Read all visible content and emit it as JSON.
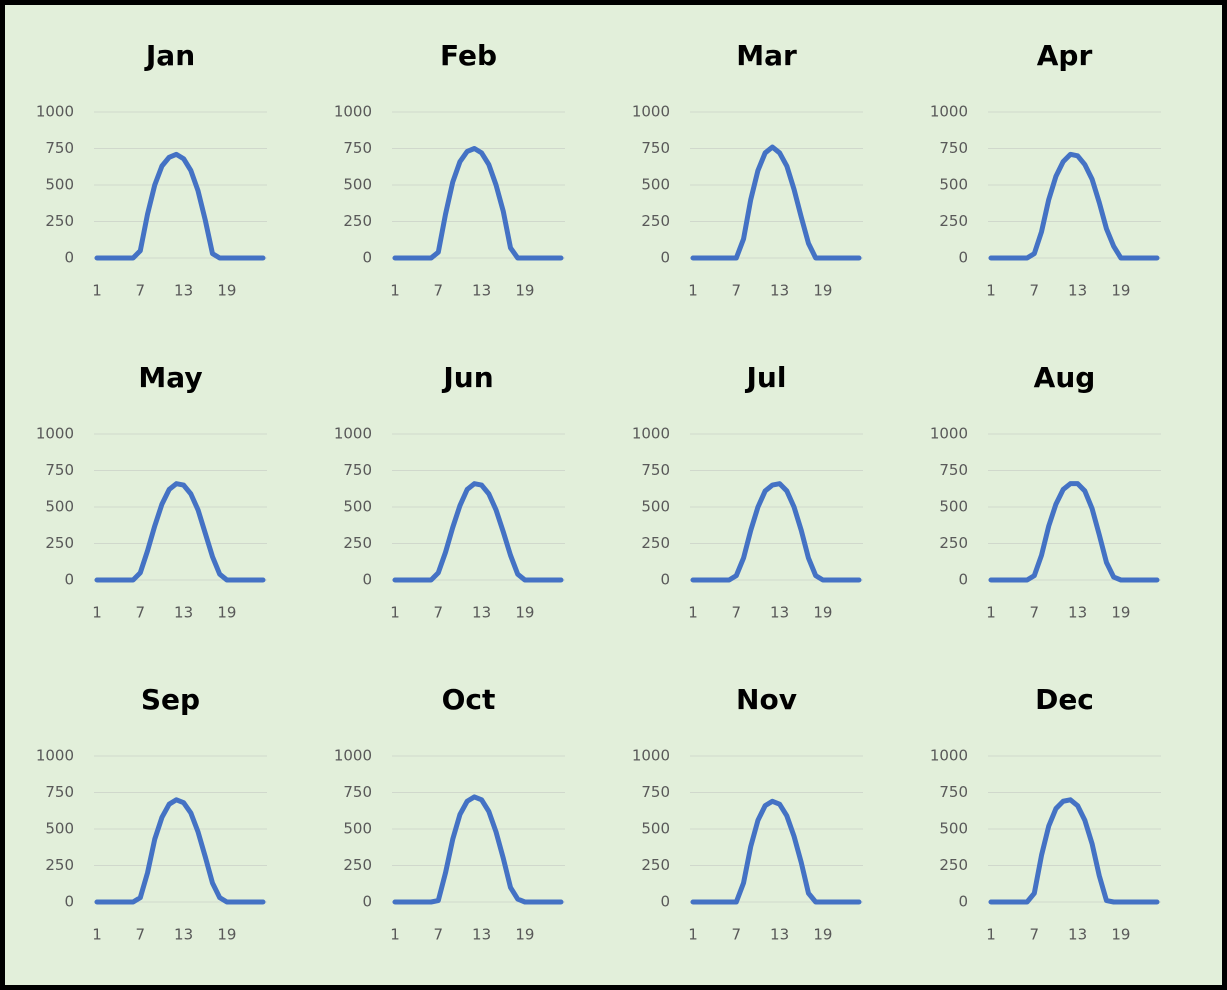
{
  "chart_data": [
    {
      "type": "line",
      "title": "Jan",
      "x": [
        1,
        2,
        3,
        4,
        5,
        6,
        7,
        8,
        9,
        10,
        11,
        12,
        13,
        14,
        15,
        16,
        17,
        18,
        19,
        20,
        21,
        22,
        23,
        24
      ],
      "values": [
        0,
        0,
        0,
        0,
        0,
        0,
        50,
        300,
        500,
        630,
        690,
        710,
        680,
        600,
        460,
        260,
        30,
        0,
        0,
        0,
        0,
        0,
        0,
        0
      ],
      "color": "#4472c4",
      "xlim": [
        1,
        24
      ],
      "xticks": [
        1,
        7,
        13,
        19
      ],
      "ylim": [
        0,
        1000
      ],
      "yticks": [
        0,
        250,
        500,
        750,
        1000
      ],
      "grid": true
    },
    {
      "type": "line",
      "title": "Feb",
      "x": [
        1,
        2,
        3,
        4,
        5,
        6,
        7,
        8,
        9,
        10,
        11,
        12,
        13,
        14,
        15,
        16,
        17,
        18,
        19,
        20,
        21,
        22,
        23,
        24
      ],
      "values": [
        0,
        0,
        0,
        0,
        0,
        0,
        40,
        300,
        520,
        660,
        730,
        750,
        720,
        640,
        500,
        320,
        70,
        0,
        0,
        0,
        0,
        0,
        0,
        0
      ],
      "color": "#4472c4",
      "xlim": [
        1,
        24
      ],
      "xticks": [
        1,
        7,
        13,
        19
      ],
      "ylim": [
        0,
        1000
      ],
      "yticks": [
        0,
        250,
        500,
        750,
        1000
      ],
      "grid": true
    },
    {
      "type": "line",
      "title": "Mar",
      "x": [
        1,
        2,
        3,
        4,
        5,
        6,
        7,
        8,
        9,
        10,
        11,
        12,
        13,
        14,
        15,
        16,
        17,
        18,
        19,
        20,
        21,
        22,
        23,
        24
      ],
      "values": [
        0,
        0,
        0,
        0,
        0,
        0,
        0,
        130,
        400,
        600,
        720,
        760,
        720,
        630,
        470,
        280,
        100,
        0,
        0,
        0,
        0,
        0,
        0,
        0
      ],
      "color": "#4472c4",
      "xlim": [
        1,
        24
      ],
      "xticks": [
        1,
        7,
        13,
        19
      ],
      "ylim": [
        0,
        1000
      ],
      "yticks": [
        0,
        250,
        500,
        750,
        1000
      ],
      "grid": true
    },
    {
      "type": "line",
      "title": "Apr",
      "x": [
        1,
        2,
        3,
        4,
        5,
        6,
        7,
        8,
        9,
        10,
        11,
        12,
        13,
        14,
        15,
        16,
        17,
        18,
        19,
        20,
        21,
        22,
        23,
        24
      ],
      "values": [
        0,
        0,
        0,
        0,
        0,
        0,
        30,
        180,
        400,
        560,
        660,
        710,
        700,
        640,
        540,
        380,
        200,
        80,
        0,
        0,
        0,
        0,
        0,
        0
      ],
      "color": "#4472c4",
      "xlim": [
        1,
        24
      ],
      "xticks": [
        1,
        7,
        13,
        19
      ],
      "ylim": [
        0,
        1000
      ],
      "yticks": [
        0,
        250,
        500,
        750,
        1000
      ],
      "grid": true
    },
    {
      "type": "line",
      "title": "May",
      "x": [
        1,
        2,
        3,
        4,
        5,
        6,
        7,
        8,
        9,
        10,
        11,
        12,
        13,
        14,
        15,
        16,
        17,
        18,
        19,
        20,
        21,
        22,
        23,
        24
      ],
      "values": [
        0,
        0,
        0,
        0,
        0,
        0,
        50,
        200,
        370,
        520,
        620,
        660,
        650,
        590,
        480,
        320,
        160,
        40,
        0,
        0,
        0,
        0,
        0,
        0
      ],
      "color": "#4472c4",
      "xlim": [
        1,
        24
      ],
      "xticks": [
        1,
        7,
        13,
        19
      ],
      "ylim": [
        0,
        1000
      ],
      "yticks": [
        0,
        250,
        500,
        750,
        1000
      ],
      "grid": true
    },
    {
      "type": "line",
      "title": "Jun",
      "x": [
        1,
        2,
        3,
        4,
        5,
        6,
        7,
        8,
        9,
        10,
        11,
        12,
        13,
        14,
        15,
        16,
        17,
        18,
        19,
        20,
        21,
        22,
        23,
        24
      ],
      "values": [
        0,
        0,
        0,
        0,
        0,
        0,
        50,
        190,
        360,
        510,
        620,
        660,
        650,
        590,
        480,
        330,
        170,
        40,
        0,
        0,
        0,
        0,
        0,
        0
      ],
      "color": "#4472c4",
      "xlim": [
        1,
        24
      ],
      "xticks": [
        1,
        7,
        13,
        19
      ],
      "ylim": [
        0,
        1000
      ],
      "yticks": [
        0,
        250,
        500,
        750,
        1000
      ],
      "grid": true
    },
    {
      "type": "line",
      "title": "Jul",
      "x": [
        1,
        2,
        3,
        4,
        5,
        6,
        7,
        8,
        9,
        10,
        11,
        12,
        13,
        14,
        15,
        16,
        17,
        18,
        19,
        20,
        21,
        22,
        23,
        24
      ],
      "values": [
        0,
        0,
        0,
        0,
        0,
        0,
        30,
        150,
        340,
        500,
        610,
        650,
        660,
        610,
        500,
        340,
        150,
        30,
        0,
        0,
        0,
        0,
        0,
        0
      ],
      "color": "#4472c4",
      "xlim": [
        1,
        24
      ],
      "xticks": [
        1,
        7,
        13,
        19
      ],
      "ylim": [
        0,
        1000
      ],
      "yticks": [
        0,
        250,
        500,
        750,
        1000
      ],
      "grid": true
    },
    {
      "type": "line",
      "title": "Aug",
      "x": [
        1,
        2,
        3,
        4,
        5,
        6,
        7,
        8,
        9,
        10,
        11,
        12,
        13,
        14,
        15,
        16,
        17,
        18,
        19,
        20,
        21,
        22,
        23,
        24
      ],
      "values": [
        0,
        0,
        0,
        0,
        0,
        0,
        30,
        170,
        370,
        520,
        620,
        660,
        660,
        610,
        490,
        310,
        120,
        20,
        0,
        0,
        0,
        0,
        0,
        0
      ],
      "color": "#4472c4",
      "xlim": [
        1,
        24
      ],
      "xticks": [
        1,
        7,
        13,
        19
      ],
      "ylim": [
        0,
        1000
      ],
      "yticks": [
        0,
        250,
        500,
        750,
        1000
      ],
      "grid": true
    },
    {
      "type": "line",
      "title": "Sep",
      "x": [
        1,
        2,
        3,
        4,
        5,
        6,
        7,
        8,
        9,
        10,
        11,
        12,
        13,
        14,
        15,
        16,
        17,
        18,
        19,
        20,
        21,
        22,
        23,
        24
      ],
      "values": [
        0,
        0,
        0,
        0,
        0,
        0,
        30,
        200,
        430,
        580,
        670,
        700,
        680,
        610,
        480,
        310,
        130,
        30,
        0,
        0,
        0,
        0,
        0,
        0
      ],
      "color": "#4472c4",
      "xlim": [
        1,
        24
      ],
      "xticks": [
        1,
        7,
        13,
        19
      ],
      "ylim": [
        0,
        1000
      ],
      "yticks": [
        0,
        250,
        500,
        750,
        1000
      ],
      "grid": true
    },
    {
      "type": "line",
      "title": "Oct",
      "x": [
        1,
        2,
        3,
        4,
        5,
        6,
        7,
        8,
        9,
        10,
        11,
        12,
        13,
        14,
        15,
        16,
        17,
        18,
        19,
        20,
        21,
        22,
        23,
        24
      ],
      "values": [
        0,
        0,
        0,
        0,
        0,
        0,
        10,
        200,
        430,
        600,
        690,
        720,
        700,
        620,
        480,
        300,
        100,
        20,
        0,
        0,
        0,
        0,
        0,
        0
      ],
      "color": "#4472c4",
      "xlim": [
        1,
        24
      ],
      "xticks": [
        1,
        7,
        13,
        19
      ],
      "ylim": [
        0,
        1000
      ],
      "yticks": [
        0,
        250,
        500,
        750,
        1000
      ],
      "grid": true
    },
    {
      "type": "line",
      "title": "Nov",
      "x": [
        1,
        2,
        3,
        4,
        5,
        6,
        7,
        8,
        9,
        10,
        11,
        12,
        13,
        14,
        15,
        16,
        17,
        18,
        19,
        20,
        21,
        22,
        23,
        24
      ],
      "values": [
        0,
        0,
        0,
        0,
        0,
        0,
        0,
        130,
        380,
        560,
        660,
        690,
        670,
        590,
        450,
        270,
        60,
        0,
        0,
        0,
        0,
        0,
        0,
        0
      ],
      "color": "#4472c4",
      "xlim": [
        1,
        24
      ],
      "xticks": [
        1,
        7,
        13,
        19
      ],
      "ylim": [
        0,
        1000
      ],
      "yticks": [
        0,
        250,
        500,
        750,
        1000
      ],
      "grid": true
    },
    {
      "type": "line",
      "title": "Dec",
      "x": [
        1,
        2,
        3,
        4,
        5,
        6,
        7,
        8,
        9,
        10,
        11,
        12,
        13,
        14,
        15,
        16,
        17,
        18,
        19,
        20,
        21,
        22,
        23,
        24
      ],
      "values": [
        0,
        0,
        0,
        0,
        0,
        0,
        60,
        320,
        520,
        640,
        690,
        700,
        660,
        560,
        400,
        180,
        10,
        0,
        0,
        0,
        0,
        0,
        0,
        0
      ],
      "color": "#4472c4",
      "xlim": [
        1,
        24
      ],
      "xticks": [
        1,
        7,
        13,
        19
      ],
      "ylim": [
        0,
        1000
      ],
      "yticks": [
        0,
        250,
        500,
        750,
        1000
      ],
      "grid": true
    }
  ]
}
